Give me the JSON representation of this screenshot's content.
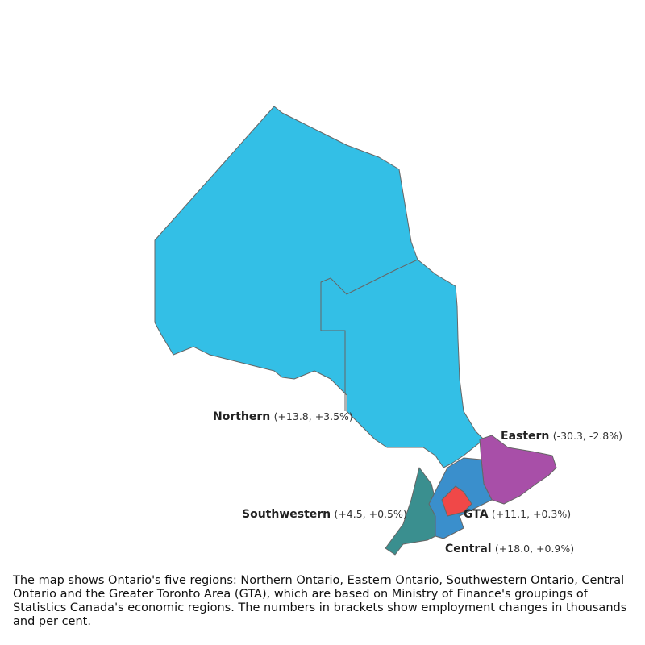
{
  "regions": [
    {
      "name": "Northern",
      "change": "(+13.8, +3.5%)"
    },
    {
      "name": "Eastern",
      "change": "(-30.3, -2.8%)"
    },
    {
      "name": "Southwestern",
      "change": "(+4.5, +0.5%)"
    },
    {
      "name": "GTA",
      "change": "(+11.1, +0.3%)"
    },
    {
      "name": "Central",
      "change": "(+18.0, +0.9%)"
    }
  ],
  "caption": "The map shows Ontario's five regions: Northern Ontario, Eastern Ontario, Southwestern Ontario, Central Ontario and the Greater Toronto Area (GTA), which are based on Ministry of Finance's groupings of Statistics Canada's economic regions. The numbers in brackets show employment changes in thousands and per cent."
}
